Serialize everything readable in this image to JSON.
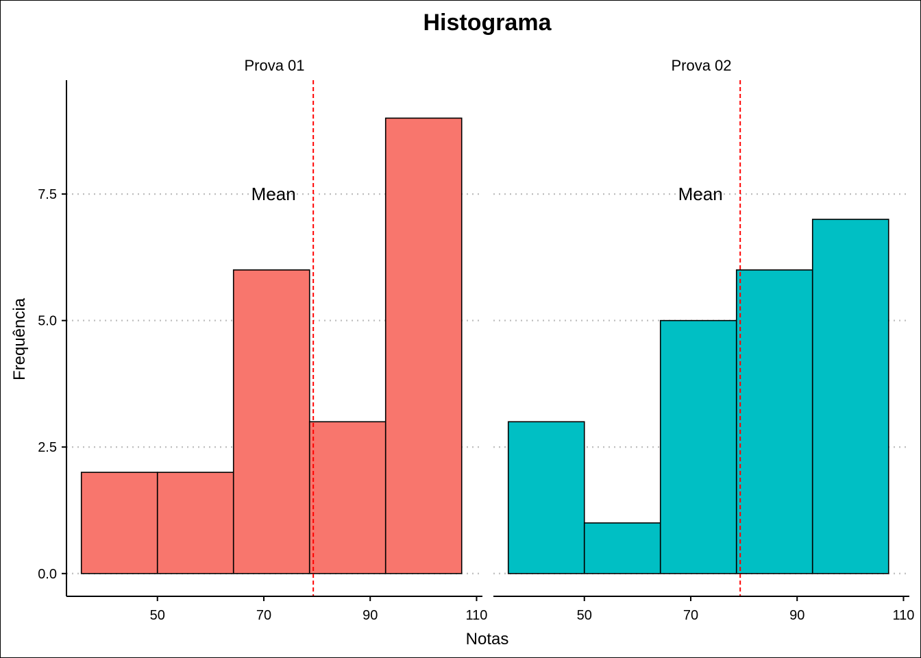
{
  "chart_data": {
    "type": "bar",
    "title": "Histograma",
    "xlabel": "Notas",
    "ylabel": "Frequência",
    "ylim": [
      -0.45,
      9.75
    ],
    "xlim": [
      32.9,
      111.1
    ],
    "x_ticks": [
      50,
      70,
      90,
      110
    ],
    "y_ticks": [
      0.0,
      2.5,
      5.0,
      7.5
    ],
    "y_tick_labels": [
      "0.0",
      "2.5",
      "5.0",
      "7.5"
    ],
    "grid": "horizontal dotted",
    "fill_colors": [
      "#F8766D",
      "#00BFC4"
    ],
    "mean_line_color": "#FF0000",
    "mean_label": "Mean",
    "panels": [
      {
        "name": "Prova 01",
        "bin_edges": [
          35.7,
          50.0,
          64.3,
          78.6,
          92.9,
          107.2
        ],
        "counts": [
          2,
          2,
          6,
          3,
          9
        ],
        "mean": 79.3
      },
      {
        "name": "Prova 02",
        "bin_edges": [
          35.7,
          50.0,
          64.3,
          78.6,
          92.9,
          107.2
        ],
        "counts": [
          3,
          1,
          5,
          6,
          7
        ],
        "mean": 79.3
      }
    ]
  }
}
